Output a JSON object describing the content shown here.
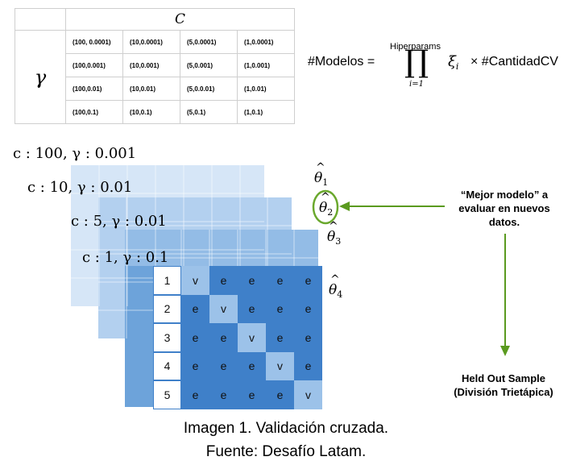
{
  "table": {
    "c_header": "C",
    "gamma_header": "γ",
    "rows": [
      [
        "(100, 0.0001)",
        "(10,0.0001)",
        "(5,0.0001)",
        "(1,0.0001)"
      ],
      [
        "(100,0.001)",
        "(10,0.001)",
        "(5,0.001)",
        "(1,0.001)"
      ],
      [
        "(100,0.01)",
        "(10,0.01)",
        "(5,0.0.01)",
        "(1,0.01)"
      ],
      [
        "(100,0.1)",
        "(10,0.1)",
        "(5,0.1)",
        "(1,0.1)"
      ]
    ]
  },
  "formula": {
    "lhs": "#Modelos =",
    "upper": "Hiperparams",
    "product": "∏",
    "lower": "i=1",
    "term": "ξ",
    "term_sub": "i",
    "rhs": "× #CantidadCV"
  },
  "layer_labels": [
    "c : 100, γ : 0.001",
    "c : 10, γ : 0.01",
    "c : 5, γ : 0.01",
    "c : 1, γ : 0.1"
  ],
  "thetas": [
    {
      "hat": "^",
      "symbol": "θ",
      "sub": "1"
    },
    {
      "hat": "^",
      "symbol": "θ",
      "sub": "2"
    },
    {
      "hat": "^",
      "symbol": "θ",
      "sub": "3"
    },
    {
      "hat": "^",
      "symbol": "θ",
      "sub": "4"
    }
  ],
  "folds": {
    "row_labels": [
      "1",
      "2",
      "3",
      "4",
      "5"
    ],
    "cells": [
      [
        "v",
        "e",
        "e",
        "e",
        "e"
      ],
      [
        "e",
        "v",
        "e",
        "e",
        "e"
      ],
      [
        "e",
        "e",
        "v",
        "e",
        "e"
      ],
      [
        "e",
        "e",
        "e",
        "v",
        "e"
      ],
      [
        "e",
        "e",
        "e",
        "e",
        "v"
      ]
    ]
  },
  "annotations": {
    "best_model": "“Mejor modelo” a evaluar en nuevos datos.",
    "held_out": "Held Out Sample (División Trietápica)"
  },
  "caption": {
    "line1": "Imagen 1. Validación cruzada.",
    "line2": "Fuente: Desafío Latam."
  },
  "colors": {
    "layer1": "#d6e6f7",
    "layer2": "#b3d0ef",
    "layer3": "#93bce6",
    "layer4": "#6da3da",
    "grid_train": "#3f80c9",
    "grid_val": "#9cc2e9",
    "arrow": "#5a9a1f",
    "circle": "#6aa82d"
  }
}
